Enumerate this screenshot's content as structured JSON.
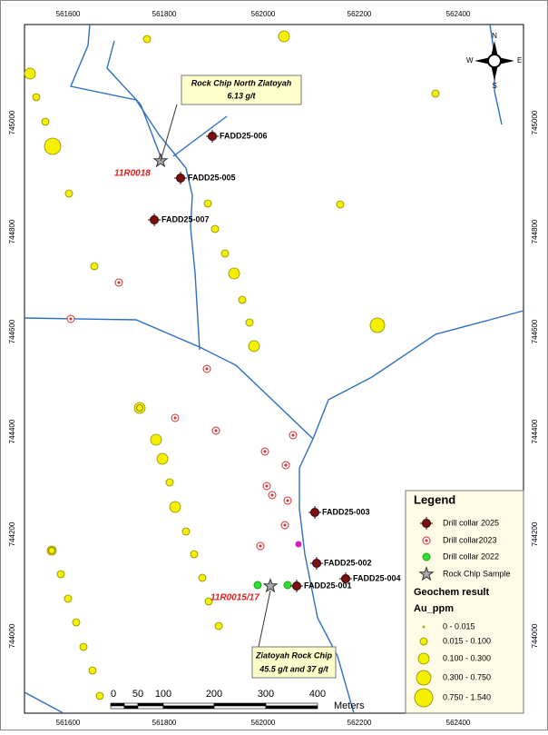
{
  "axes": {
    "x_ticks": [
      561600,
      561800,
      562000,
      562200,
      562400
    ],
    "y_ticks": [
      745000,
      744800,
      744600,
      744400,
      744200,
      744000
    ]
  },
  "annotations": {
    "north_callout": {
      "title": "Rock Chip North Ziatoyah",
      "grade": "6.13 g/t"
    },
    "south_callout": {
      "title": "Ziatoyah Rock Chip",
      "grade": "45.5 g/t and 37 g/t"
    },
    "sample_ids": [
      "11R0018",
      "11R0015/17"
    ]
  },
  "drill_holes": [
    "FADD25-006",
    "FADD25-005",
    "FADD25-007",
    "FADD25-003",
    "FADD25-002",
    "FADD25-004",
    "FADD25-001"
  ],
  "compass": [
    "N",
    "E",
    "S",
    "W"
  ],
  "scale_bar": {
    "labels": [
      "0",
      "50",
      "100",
      "200",
      "300",
      "400"
    ],
    "unit": "Meters"
  },
  "legend": {
    "title": "Legend",
    "items": [
      "Drill collar 2025",
      "Drill collar2023",
      "Drill collar 2022",
      "Rock Chip Sample"
    ],
    "geochem_title": "Geochem result",
    "field": "Au_ppm",
    "classes": [
      "0 - 0.015",
      "0.015 - 0.100",
      "0.100 - 0.300",
      "0.300 - 0.750",
      "0.750 - 1.540"
    ]
  }
}
